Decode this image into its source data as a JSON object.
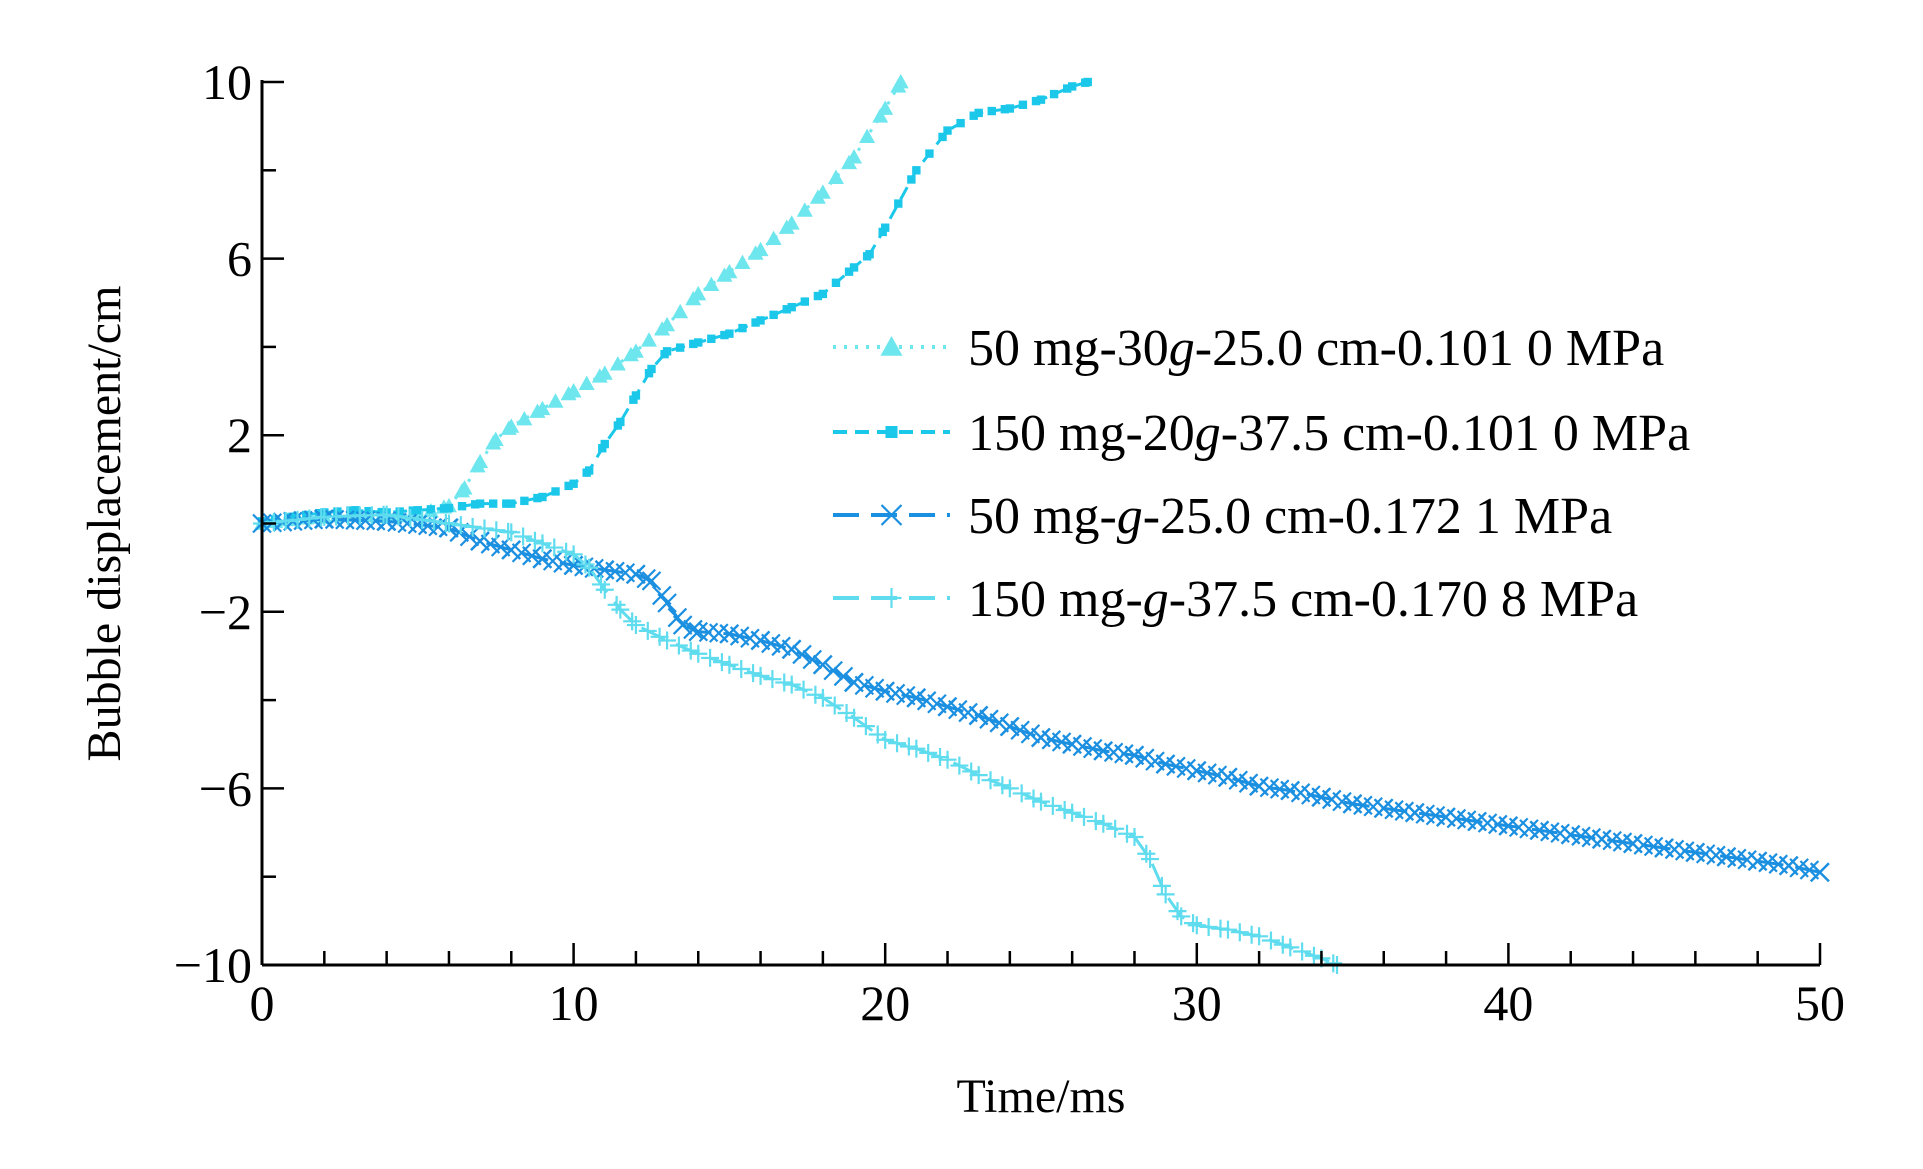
{
  "chart_data": {
    "type": "line",
    "title": "",
    "xlabel": "Time/ms",
    "ylabel": "Bubble displacement/cm",
    "xlim": [
      0,
      50
    ],
    "ylim": [
      -10,
      10
    ],
    "xticks": [
      0,
      10,
      20,
      30,
      40,
      50
    ],
    "xtick_labels": [
      "0",
      "10",
      "20",
      "30",
      "40",
      "50"
    ],
    "yticks": [
      10,
      6,
      2,
      -2,
      -6,
      -10
    ],
    "ytick_labels": [
      "10",
      "6",
      "2",
      "−2",
      "−6",
      "−10"
    ],
    "grid": false,
    "legend_position": "right",
    "series": [
      {
        "name": "50 mg-30g-25.0 cm-0.101 0 MPa",
        "label_parts": [
          "50 mg-30",
          "g",
          "-25.0 cm-0.101 0 MPa"
        ],
        "color": "#6ee6ee",
        "dash": "dotted",
        "marker": "triangle",
        "points": [
          [
            0,
            0
          ],
          [
            1,
            0.1
          ],
          [
            2,
            0.15
          ],
          [
            3,
            0.2
          ],
          [
            4,
            0.15
          ],
          [
            5,
            0.2
          ],
          [
            6,
            0.4
          ],
          [
            6.5,
            0.8
          ],
          [
            7,
            1.4
          ],
          [
            7.5,
            1.9
          ],
          [
            8,
            2.2
          ],
          [
            9,
            2.6
          ],
          [
            10,
            3.0
          ],
          [
            11,
            3.4
          ],
          [
            12,
            3.9
          ],
          [
            13,
            4.5
          ],
          [
            14,
            5.2
          ],
          [
            15,
            5.7
          ],
          [
            16,
            6.2
          ],
          [
            17,
            6.8
          ],
          [
            18,
            7.5
          ],
          [
            19,
            8.3
          ],
          [
            20,
            9.4
          ],
          [
            20.5,
            10
          ]
        ]
      },
      {
        "name": "150 mg-20g-37.5 cm-0.101 0 MPa",
        "label_parts": [
          "150 mg-20",
          "g",
          "-37.5 cm-0.101 0 MPa"
        ],
        "color": "#1cc8ea",
        "dash": "dashed",
        "marker": "square",
        "points": [
          [
            0,
            0.05
          ],
          [
            1,
            0.15
          ],
          [
            2,
            0.25
          ],
          [
            3,
            0.3
          ],
          [
            4,
            0.25
          ],
          [
            5,
            0.3
          ],
          [
            6,
            0.35
          ],
          [
            7,
            0.45
          ],
          [
            8,
            0.45
          ],
          [
            9,
            0.6
          ],
          [
            10,
            0.9
          ],
          [
            10.5,
            1.2
          ],
          [
            11,
            1.8
          ],
          [
            11.5,
            2.3
          ],
          [
            12,
            2.9
          ],
          [
            12.5,
            3.5
          ],
          [
            13,
            3.9
          ],
          [
            14,
            4.1
          ],
          [
            15,
            4.3
          ],
          [
            16,
            4.6
          ],
          [
            17,
            4.9
          ],
          [
            18,
            5.2
          ],
          [
            19,
            5.8
          ],
          [
            19.5,
            6.1
          ],
          [
            20,
            6.7
          ],
          [
            21,
            8.0
          ],
          [
            22,
            8.9
          ],
          [
            23,
            9.3
          ],
          [
            24,
            9.4
          ],
          [
            25,
            9.6
          ],
          [
            26,
            9.9
          ],
          [
            26.5,
            10
          ]
        ]
      },
      {
        "name": "50 mg-g-25.0 cm-0.172 1 MPa",
        "label_parts": [
          "50 mg-",
          "g",
          "-25.0 cm-0.172 1 MPa"
        ],
        "color": "#1b8fe0",
        "dash": "long-dash",
        "marker": "x",
        "points": [
          [
            0,
            0
          ],
          [
            2,
            0.1
          ],
          [
            4,
            0.05
          ],
          [
            6,
            -0.1
          ],
          [
            7,
            -0.4
          ],
          [
            8,
            -0.6
          ],
          [
            9,
            -0.8
          ],
          [
            10,
            -0.95
          ],
          [
            11,
            -1.05
          ],
          [
            12,
            -1.15
          ],
          [
            12.5,
            -1.3
          ],
          [
            13,
            -1.8
          ],
          [
            13.5,
            -2.3
          ],
          [
            14,
            -2.45
          ],
          [
            15,
            -2.5
          ],
          [
            16,
            -2.65
          ],
          [
            17,
            -2.85
          ],
          [
            18,
            -3.2
          ],
          [
            19,
            -3.6
          ],
          [
            20,
            -3.8
          ],
          [
            21,
            -3.95
          ],
          [
            22,
            -4.15
          ],
          [
            23,
            -4.35
          ],
          [
            24,
            -4.6
          ],
          [
            25,
            -4.85
          ],
          [
            26,
            -5.0
          ],
          [
            27,
            -5.15
          ],
          [
            28,
            -5.25
          ],
          [
            29,
            -5.45
          ],
          [
            30,
            -5.6
          ],
          [
            31,
            -5.75
          ],
          [
            32,
            -5.95
          ],
          [
            33,
            -6.05
          ],
          [
            34,
            -6.2
          ],
          [
            35,
            -6.35
          ],
          [
            36,
            -6.45
          ],
          [
            37,
            -6.55
          ],
          [
            38,
            -6.65
          ],
          [
            39,
            -6.75
          ],
          [
            40,
            -6.85
          ],
          [
            41,
            -6.95
          ],
          [
            42,
            -7.05
          ],
          [
            43,
            -7.15
          ],
          [
            44,
            -7.25
          ],
          [
            45,
            -7.35
          ],
          [
            46,
            -7.45
          ],
          [
            47,
            -7.55
          ],
          [
            48,
            -7.65
          ],
          [
            49,
            -7.75
          ],
          [
            50,
            -7.9
          ]
        ]
      },
      {
        "name": "150 mg-g-37.5 cm-0.170 8 MPa",
        "label_parts": [
          "150 mg-",
          "g",
          "-37.5 cm-0.170 8 MPa"
        ],
        "color": "#5fdcee",
        "dash": "long-dash",
        "marker": "plus",
        "points": [
          [
            0,
            0
          ],
          [
            2,
            0.15
          ],
          [
            4,
            0.2
          ],
          [
            6,
            0.0
          ],
          [
            8,
            -0.2
          ],
          [
            9,
            -0.45
          ],
          [
            10,
            -0.7
          ],
          [
            10.5,
            -1.0
          ],
          [
            11,
            -1.5
          ],
          [
            11.5,
            -1.95
          ],
          [
            12,
            -2.3
          ],
          [
            13,
            -2.65
          ],
          [
            14,
            -2.95
          ],
          [
            15,
            -3.2
          ],
          [
            16,
            -3.45
          ],
          [
            17,
            -3.65
          ],
          [
            18,
            -3.95
          ],
          [
            19,
            -4.4
          ],
          [
            20,
            -4.9
          ],
          [
            21,
            -5.1
          ],
          [
            22,
            -5.35
          ],
          [
            23,
            -5.7
          ],
          [
            24,
            -6.0
          ],
          [
            25,
            -6.3
          ],
          [
            26,
            -6.55
          ],
          [
            27,
            -6.8
          ],
          [
            28,
            -7.1
          ],
          [
            28.5,
            -7.6
          ],
          [
            29,
            -8.4
          ],
          [
            29.5,
            -8.9
          ],
          [
            30,
            -9.1
          ],
          [
            31,
            -9.2
          ],
          [
            32,
            -9.35
          ],
          [
            33,
            -9.6
          ],
          [
            34,
            -9.85
          ],
          [
            34.5,
            -10
          ]
        ]
      }
    ]
  }
}
